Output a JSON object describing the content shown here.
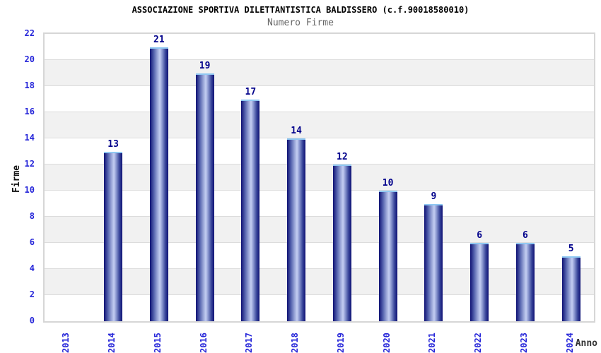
{
  "page": {
    "title": "ASSOCIAZIONE SPORTIVA DILETTANTISTICA BALDISSERO (c.f.90018580010)",
    "subtitle": "Numero Firme"
  },
  "chart_data": {
    "type": "bar",
    "title": "ASSOCIAZIONE SPORTIVA DILETTANTISTICA BALDISSERO (c.f.90018580010)",
    "subtitle": "Numero Firme",
    "categories": [
      "2013",
      "2014",
      "2015",
      "2016",
      "2017",
      "2018",
      "2019",
      "2020",
      "2021",
      "2022",
      "2023",
      "2024"
    ],
    "values": [
      0,
      13,
      21,
      19,
      17,
      14,
      12,
      10,
      9,
      6,
      6,
      5
    ],
    "xlabel": "Anno",
    "ylabel": "Firme",
    "ylim": [
      0,
      22
    ],
    "ytick_step": 2,
    "yticks": [
      0,
      2,
      4,
      6,
      8,
      10,
      12,
      14,
      16,
      18,
      20,
      22
    ],
    "show_value_labels": true,
    "legend": "none",
    "grid": "horizontal-bands",
    "colors": {
      "bar_edge": "#0e1174",
      "bar_mid1": "#5563ae",
      "bar_mid2": "#97a3d6",
      "bar_highlight": "#c4cef2",
      "bar_mid3": "#8e9bd2",
      "bar_mid4": "#3a479b",
      "bar_cap": "#90c8f2",
      "value_label": "#00008b",
      "tick_label": "#2626d9",
      "band_white": "#ffffff",
      "band_gray": "#f1f1f1",
      "grid_line": "#dcdcdc",
      "plot_border": "#d6d6d6",
      "title": "#000000",
      "subtitle": "#666666",
      "axis_label": "#111111"
    }
  }
}
